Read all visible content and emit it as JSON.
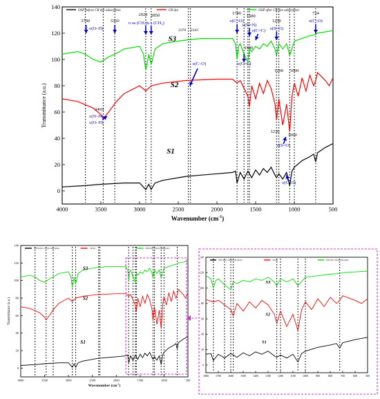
{
  "chart_data": [
    {
      "type": "line",
      "panel": "main",
      "xlabel": "Wavenumber (cm",
      "xlabel_sup": "-1",
      "xlabel_end": ")",
      "ylabel": "Transmittance (a.u.)",
      "xlim": [
        4000,
        500
      ],
      "ylim": [
        -10,
        140
      ],
      "xticks": [
        4000,
        3500,
        3000,
        2500,
        2000,
        1500,
        1000,
        500
      ],
      "yticks": [
        0,
        20,
        40,
        60,
        80,
        100,
        120,
        140
      ],
      "legend_position": "top",
      "series": [
        {
          "name": "OSP before CR dye adsorption",
          "label": "S1",
          "color": "#000000",
          "x": [
            4000,
            3700,
            3500,
            3200,
            3000,
            2920,
            2880,
            2850,
            2800,
            2700,
            2500,
            2400,
            2200,
            2000,
            1800,
            1760,
            1740,
            1700,
            1650,
            1600,
            1550,
            1500,
            1450,
            1400,
            1350,
            1300,
            1250,
            1230,
            1200,
            1150,
            1100,
            1060,
            1030,
            1000,
            900,
            800,
            750,
            724,
            700,
            600,
            500
          ],
          "values": [
            3,
            4,
            5,
            6,
            6,
            1,
            5,
            1,
            6,
            8,
            10,
            11,
            12,
            13,
            14,
            15,
            6,
            14,
            9,
            15,
            10,
            16,
            12,
            17,
            14,
            18,
            12,
            10,
            13,
            9,
            14,
            4,
            15,
            18,
            23,
            26,
            28,
            22,
            29,
            33,
            36
          ]
        },
        {
          "name": "CR dye",
          "label": "S2",
          "color": "#ff0000",
          "x": [
            4000,
            3800,
            3600,
            3500,
            3469,
            3400,
            3300,
            3200,
            3000,
            2920,
            2850,
            2700,
            2400,
            2000,
            1800,
            1740,
            1700,
            1650,
            1600,
            1580,
            1550,
            1500,
            1450,
            1400,
            1350,
            1300,
            1250,
            1230,
            1200,
            1150,
            1100,
            1060,
            1030,
            1000,
            950,
            900,
            850,
            800,
            750,
            724,
            700,
            600,
            550,
            500
          ],
          "values": [
            70,
            68,
            63,
            58,
            55,
            60,
            68,
            74,
            80,
            76,
            80,
            82,
            84,
            85,
            85,
            82,
            84,
            78,
            72,
            64,
            80,
            70,
            82,
            74,
            84,
            78,
            66,
            54,
            70,
            50,
            66,
            45,
            72,
            82,
            72,
            86,
            76,
            88,
            80,
            84,
            90,
            84,
            80,
            86
          ]
        },
        {
          "name": "OSP after CR dye adsorption",
          "label": "S3",
          "color": "#00dd00",
          "x": [
            4000,
            3800,
            3700,
            3600,
            3500,
            3400,
            3320,
            3200,
            3000,
            2950,
            2920,
            2880,
            2850,
            2800,
            2700,
            2500,
            2370,
            2343,
            2200,
            2000,
            1800,
            1760,
            1740,
            1720,
            1700,
            1650,
            1600,
            1580,
            1550,
            1500,
            1450,
            1400,
            1350,
            1300,
            1250,
            1230,
            1200,
            1150,
            1100,
            1060,
            1000,
            900,
            800,
            724,
            700,
            600,
            500
          ],
          "values": [
            104,
            106,
            104,
            100,
            98,
            102,
            104,
            108,
            110,
            104,
            92,
            104,
            96,
            108,
            112,
            114,
            115,
            115,
            116,
            116,
            116,
            112,
            100,
            110,
            112,
            104,
            98,
            108,
            106,
            110,
            108,
            112,
            110,
            114,
            108,
            103,
            112,
            108,
            112,
            103,
            114,
            116,
            118,
            119,
            120,
            121,
            122
          ]
        }
      ],
      "dotted_lines": [
        3700,
        3469,
        3320,
        2920,
        2850,
        2370,
        2343,
        1740,
        1650,
        1600,
        1580,
        1230,
        1200,
        1060,
        1000,
        724
      ],
      "annotations": [
        {
          "text": "3700",
          "x": 3700
        },
        {
          "text": "υ(O–H)",
          "x": 3700
        },
        {
          "text": "3320",
          "x": 3320
        },
        {
          "text": "2920",
          "x": 2920
        },
        {
          "text": "υ as (CH₂)",
          "x": 2920
        },
        {
          "text": "2850",
          "x": 2850
        },
        {
          "text": "υ s (CH₂)",
          "x": 2850
        },
        {
          "text": "2370",
          "x": 2370
        },
        {
          "text": "2343",
          "x": 2343
        },
        {
          "text": "υ(C–O)",
          "x": 2343
        },
        {
          "text": "1740",
          "x": 1740
        },
        {
          "text": "υ(C=O)",
          "x": 1740
        },
        {
          "text": "1580",
          "x": 1580
        },
        {
          "text": "υ(N=N)",
          "x": 1580
        },
        {
          "text": "υ(C=C)",
          "x": 1500
        },
        {
          "text": "1600",
          "x": 1600
        },
        {
          "text": "υ(C=C)",
          "x": 1650
        },
        {
          "text": "1230",
          "x": 1230
        },
        {
          "text": "υ(S=O)",
          "x": 1230
        },
        {
          "text": "724",
          "x": 724
        },
        {
          "text": "υ(C–O)",
          "x": 724
        },
        {
          "text": "1200",
          "x": 1200
        },
        {
          "text": "1000",
          "x": 1000
        },
        {
          "text": "3469",
          "x": 3469
        },
        {
          "text": "υ(N–H)",
          "x": 3469
        },
        {
          "text": "υ(O–H)",
          "x": 3469
        },
        {
          "text": "1230",
          "x": 1230
        },
        {
          "text": "1060",
          "x": 1060
        },
        {
          "text": "υ(S=O)",
          "x": 1060
        },
        {
          "text": "υ(C–O)",
          "x": 1060
        }
      ]
    },
    {
      "type": "line",
      "panel": "overview",
      "xlabel": "Wavenumber (cm",
      "xlabel_sup": "-1",
      "xlabel_end": ")",
      "ylabel": "Transmittance (a.u.)",
      "xlim": [
        4000,
        500
      ],
      "ylim": [
        -10,
        140
      ],
      "xticks": [
        4000,
        3500,
        3000,
        2500,
        2000,
        1500,
        1000,
        500
      ],
      "yticks": [
        0,
        20,
        40,
        60,
        80,
        100,
        120,
        140
      ],
      "legend_position": "top"
    },
    {
      "type": "line",
      "panel": "zoom",
      "xlim": [
        1800,
        500
      ],
      "ylim": [
        -10,
        140
      ],
      "xticks": [
        1800,
        1700,
        1600,
        1500,
        1400,
        1300,
        1200,
        1100,
        1000,
        900,
        800,
        700,
        600,
        500
      ],
      "yticks": [
        0,
        20,
        40,
        60,
        80,
        100,
        120,
        140
      ],
      "legend_position": "top",
      "dotted_lines": [
        1740,
        1650,
        1600,
        1580,
        1230,
        1200,
        1060,
        1000,
        724
      ]
    }
  ],
  "texts": {
    "sample_s1": "S1",
    "sample_s2": "S2",
    "sample_s3": "S3",
    "legend_s1": "OSP before CR dye adsorption",
    "legend_s2": "CR dye",
    "legend_s3": "OSP after CR dye adsorption"
  },
  "colors": {
    "s1": "#000000",
    "s2": "#ff0000",
    "s3": "#00dd00",
    "annotation": "#0000cc",
    "zoom_box": "#cc33cc"
  }
}
